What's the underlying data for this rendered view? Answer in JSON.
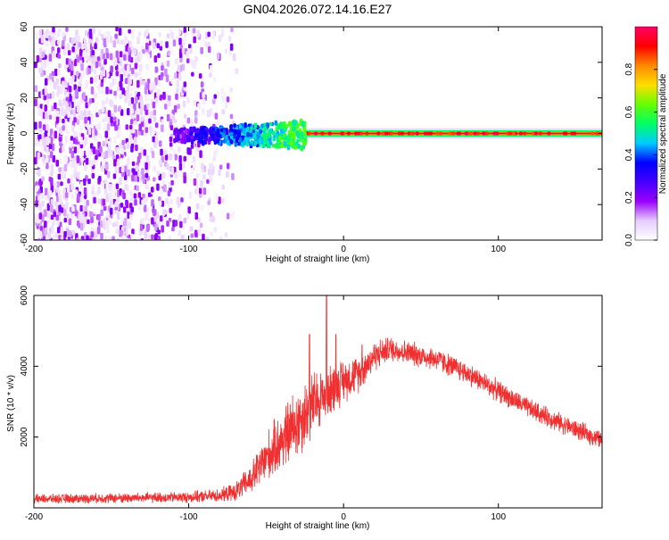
{
  "chart_data": [
    {
      "type": "heatmap",
      "title": "GN04.2026.072.14.16.E27",
      "xlabel": "Height of straight line (km)",
      "ylabel": "Frequency (Hz)",
      "xlim": [
        -200,
        167
      ],
      "ylim": [
        -60,
        60
      ],
      "xticks": [
        -200,
        -100,
        0,
        100
      ],
      "yticks": [
        -60,
        -40,
        -20,
        0,
        20,
        40,
        60
      ],
      "colorbar": {
        "label": "Normalized spectral amplitude",
        "range": [
          0,
          1
        ],
        "ticks": [
          0.0,
          0.2,
          0.4,
          0.6,
          0.8
        ],
        "tick_labels": [
          "0.0",
          "0.2",
          "0.4",
          "0.6",
          "0.8"
        ],
        "stops": [
          "#ffffff",
          "#e6ccff",
          "#9900ff",
          "#4400ff",
          "#0000ff",
          "#00ccff",
          "#00ff66",
          "#66ff00",
          "#ffdd00",
          "#ff8800",
          "#ff0000",
          "#ff0066"
        ]
      },
      "regions": [
        {
          "name": "noise",
          "x_range": [
            -200,
            -70
          ],
          "freq_range": [
            -60,
            60
          ],
          "amplitude": 0.1
        },
        {
          "name": "onset",
          "x_range": [
            -110,
            -25
          ],
          "freq_range": [
            -8,
            12
          ],
          "amplitude": 0.45
        },
        {
          "name": "carrier",
          "x_range": [
            -25,
            167
          ],
          "freq": 0,
          "amplitude": 0.95
        }
      ]
    },
    {
      "type": "line",
      "title": "",
      "xlabel": "Height of straight line (km)",
      "ylabel": "SNR (10 * v/v)",
      "xlim": [
        -200,
        167
      ],
      "ylim": [
        0,
        6000
      ],
      "xticks": [
        -200,
        -100,
        0,
        100
      ],
      "yticks": [
        2000,
        4000,
        6000
      ],
      "series": [
        {
          "name": "SNR",
          "color": "#f03030",
          "envelope": {
            "x": [
              -200,
              -100,
              -80,
              -70,
              -60,
              -50,
              -40,
              -30,
              -20,
              -10,
              0,
              10,
              20,
              30,
              40,
              60,
              80,
              100,
              120,
              140,
              167
            ],
            "y": [
              250,
              300,
              350,
              450,
              800,
              1400,
              1900,
              2400,
              2900,
              3300,
              3600,
              3800,
              4300,
              4500,
              4400,
              4200,
              3800,
              3300,
              2800,
              2400,
              1900
            ],
            "spread": [
              150,
              180,
              220,
              300,
              500,
              800,
              1000,
              1200,
              1100,
              900,
              700,
              600,
              500,
              400,
              400,
              380,
              360,
              350,
              330,
              320,
              300
            ]
          },
          "spikes": [
            {
              "x": -11,
              "y": 6000
            },
            {
              "x": -22,
              "y": 4900
            },
            {
              "x": -5,
              "y": 4900
            },
            {
              "x": 12,
              "y": 4600
            }
          ]
        }
      ]
    }
  ]
}
